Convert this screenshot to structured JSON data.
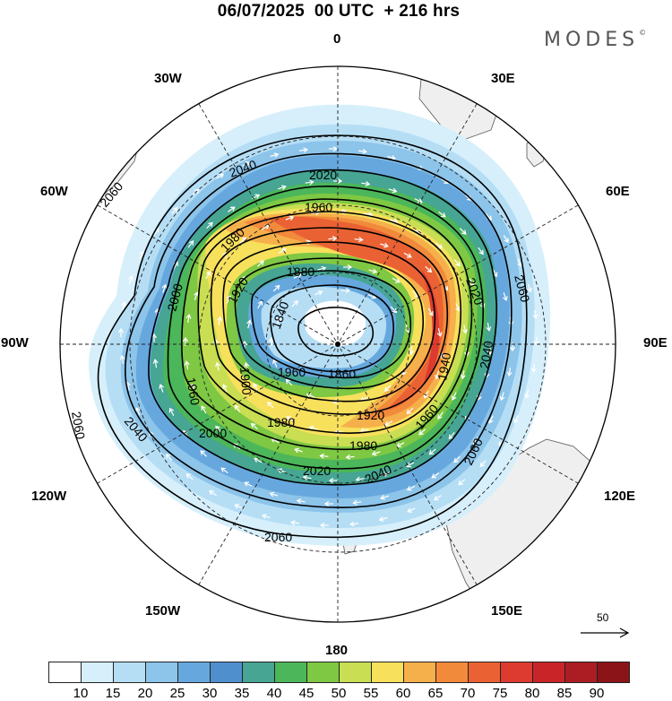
{
  "title": "06/07/2025  00 UTC  + 216 hrs",
  "brand": "MODES",
  "brand_mark": "©",
  "lon_labels": {
    "lon_0": "0",
    "lon_30e": "30E",
    "lon_60e": "60E",
    "lon_90e": "90E",
    "lon_120e": "120E",
    "lon_150e": "150E",
    "lon_180": "180",
    "lon_150w": "150W",
    "lon_120w": "120W",
    "lon_90w": "90W",
    "lon_60w": "60W",
    "lon_30w": "30W"
  },
  "contours": [
    {
      "label": "2060"
    },
    {
      "label": "2040"
    },
    {
      "label": "2020"
    },
    {
      "label": "2000"
    },
    {
      "label": "1980"
    },
    {
      "label": "1960"
    },
    {
      "label": "1940"
    },
    {
      "label": "1920"
    },
    {
      "label": "1900"
    },
    {
      "label": "1880"
    },
    {
      "label": "1860"
    },
    {
      "label": "1840"
    }
  ],
  "colorbar": {
    "ticks": [
      "10",
      "15",
      "20",
      "25",
      "30",
      "35",
      "40",
      "45",
      "50",
      "55",
      "60",
      "65",
      "70",
      "75",
      "80",
      "85",
      "90"
    ],
    "colors": [
      "#ffffff",
      "#d6effb",
      "#b5def5",
      "#8cc4ea",
      "#66a8de",
      "#4f8fce",
      "#46a593",
      "#4cb65a",
      "#7ec843",
      "#c9de52",
      "#f7e05c",
      "#f6b04b",
      "#f28a3c",
      "#ea6233",
      "#dd3b2f",
      "#c92529",
      "#ab1d22",
      "#8b1418"
    ]
  },
  "reference_vector": "50",
  "colors": {
    "land": "#efefef",
    "coast": "#555555",
    "grid": "#222222",
    "contour": "#000000",
    "arrow": "#ffffff"
  }
}
